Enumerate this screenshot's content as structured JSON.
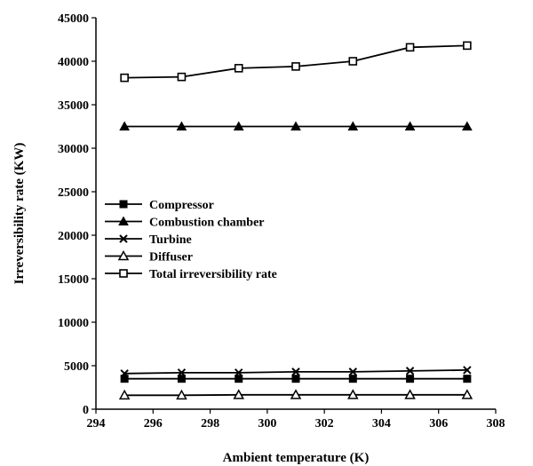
{
  "chart_data": {
    "type": "line",
    "title": "",
    "xlabel": "Ambient temperature (K)",
    "ylabel": "Irreversibility rate (KW)",
    "xlim": [
      294,
      308
    ],
    "ylim": [
      0,
      45000
    ],
    "xticks": [
      294,
      296,
      298,
      300,
      302,
      304,
      306,
      308
    ],
    "yticks": [
      0,
      5000,
      10000,
      15000,
      20000,
      25000,
      30000,
      35000,
      40000,
      45000
    ],
    "grid": false,
    "legend_position": "center-left",
    "x": [
      295,
      297,
      299,
      301,
      303,
      305,
      307
    ],
    "series": [
      {
        "name": "Compressor",
        "marker": "filled-square",
        "values": [
          3500,
          3500,
          3500,
          3500,
          3500,
          3500,
          3500
        ]
      },
      {
        "name": "Combustion chamber",
        "marker": "filled-triangle",
        "values": [
          32500,
          32500,
          32500,
          32500,
          32500,
          32500,
          32500
        ]
      },
      {
        "name": "Turbine",
        "marker": "x",
        "values": [
          4100,
          4200,
          4200,
          4300,
          4300,
          4400,
          4500
        ]
      },
      {
        "name": "Diffuser",
        "marker": "open-triangle",
        "values": [
          1600,
          1600,
          1650,
          1650,
          1650,
          1650,
          1650
        ]
      },
      {
        "name": "Total irreversibility rate",
        "marker": "open-square",
        "values": [
          38100,
          38200,
          39200,
          39400,
          40000,
          41600,
          41800
        ]
      }
    ]
  }
}
